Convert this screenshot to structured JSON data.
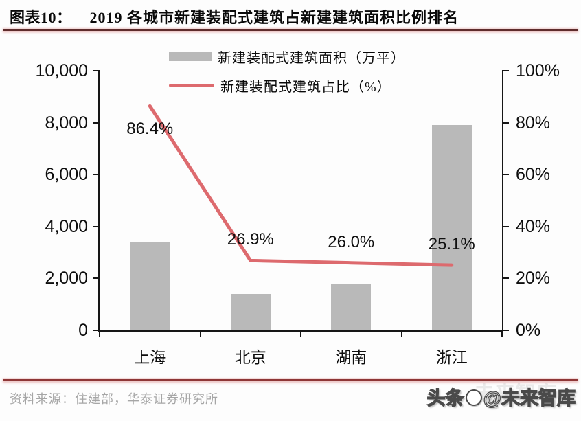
{
  "header": {
    "chart_label": "图表10：",
    "chart_title": "2019 各城市新建装配式建筑占新建建筑面积比例排名"
  },
  "chart_data": {
    "type": "bar",
    "subtype": "bar+line combo, dual axis",
    "categories": [
      "上海",
      "北京",
      "湖南",
      "浙江"
    ],
    "series": [
      {
        "name": "新建装配式建筑面积（万平）",
        "type": "bar",
        "axis": "left",
        "values": [
          3400,
          1400,
          1800,
          7900
        ],
        "color": "#b9b9b9"
      },
      {
        "name": "新建装配式建筑占比（%）",
        "type": "line",
        "axis": "right",
        "values": [
          86.4,
          26.9,
          26.0,
          25.1
        ],
        "point_labels": [
          "86.4%",
          "26.9%",
          "26.0%",
          "25.1%"
        ],
        "color": "#dd6a6e"
      }
    ],
    "left_axis": {
      "min": 0,
      "max": 10000,
      "step": 2000,
      "tick_labels": [
        "0",
        "2,000",
        "4,000",
        "6,000",
        "8,000",
        "10,000"
      ]
    },
    "right_axis": {
      "min": 0,
      "max": 100,
      "step": 20,
      "tick_labels": [
        "0%",
        "20%",
        "40%",
        "60%",
        "80%",
        "100%"
      ]
    },
    "grid": false,
    "legend_position": "top-center",
    "title": "2019 各城市新建装配式建筑占新建建筑面积比例排名"
  },
  "footer": {
    "source": "资料来源：住建部，华泰证券研究所",
    "watermark_prefix": "头条",
    "watermark_suffix": "@未来智库",
    "watermark_ghost": "未来智库"
  },
  "colors": {
    "bar": "#b9b9b9",
    "line": "#dd6a6e",
    "title_rule": "#5e2c2c",
    "bottom_rule": "#8e3636",
    "axis": "#161616",
    "source_text": "#a6a6a6"
  }
}
